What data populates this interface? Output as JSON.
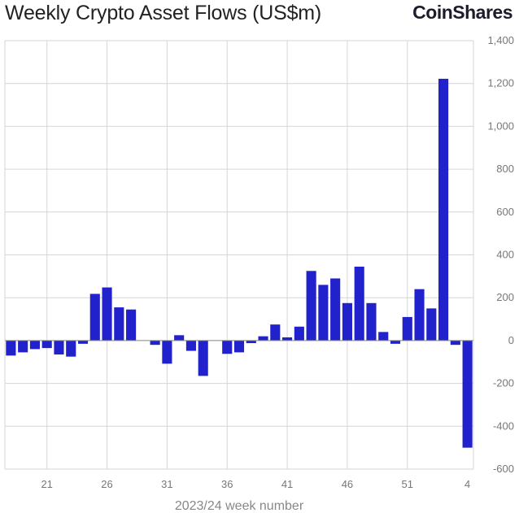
{
  "header": {
    "title": "Weekly Crypto Asset Flows (US$m)",
    "brand": "CoinShares"
  },
  "colors": {
    "bar": "#2222cc",
    "grid": "#d6d6d6",
    "zero_line": "#8a8a8a",
    "text": "#777777"
  },
  "chart_data": {
    "type": "bar",
    "title": "Weekly Crypto Asset Flows (US$m)",
    "xlabel": "2023/24 week number",
    "ylabel": "",
    "y_axis_side": "right",
    "ylim": [
      -600,
      1400
    ],
    "yticks": [
      -600,
      -400,
      -200,
      0,
      200,
      400,
      600,
      800,
      1000,
      1200,
      1400
    ],
    "ytick_labels": [
      "-600",
      "-400",
      "-200",
      "0",
      "200",
      "400",
      "600",
      "800",
      "1,000",
      "1,200",
      "1,400"
    ],
    "grid": true,
    "categories": [
      "18",
      "19",
      "20",
      "21",
      "22",
      "23",
      "24",
      "25",
      "26",
      "27",
      "28",
      "29",
      "30",
      "31",
      "32",
      "33",
      "34",
      "35",
      "36",
      "37",
      "38",
      "39",
      "40",
      "41",
      "42",
      "43",
      "44",
      "45",
      "46",
      "47",
      "48",
      "49",
      "50",
      "51",
      "52",
      "1",
      "2",
      "3",
      "4"
    ],
    "xtick_labels": [
      "21",
      "26",
      "31",
      "36",
      "41",
      "46",
      "51",
      "4"
    ],
    "values": [
      -70,
      -55,
      -40,
      -35,
      -65,
      -75,
      -15,
      218,
      248,
      155,
      145,
      0,
      -20,
      -108,
      25,
      -48,
      -165,
      0,
      -62,
      -55,
      -12,
      20,
      75,
      15,
      65,
      325,
      260,
      290,
      175,
      345,
      175,
      40,
      -15,
      110,
      240,
      150,
      1222,
      -20,
      -500
    ]
  }
}
